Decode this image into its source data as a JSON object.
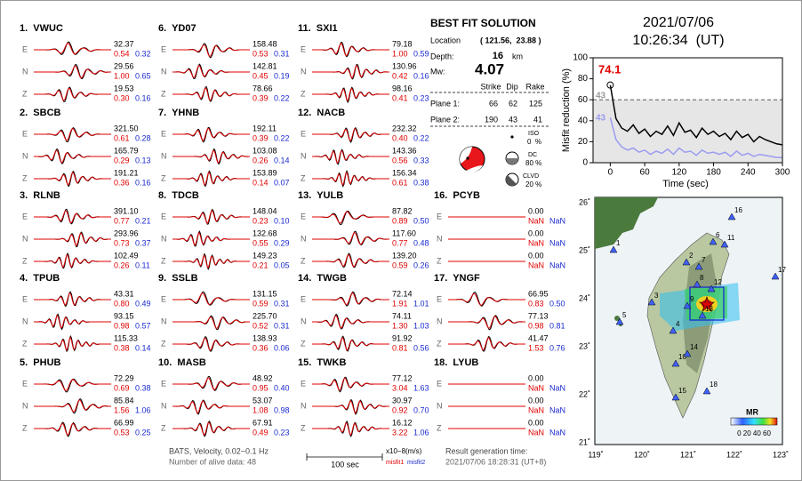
{
  "components": [
    "E",
    "N",
    "Z"
  ],
  "stations": [
    {
      "name": "1.  VWUC",
      "traces": [
        {
          "amplitude": "32.37",
          "misfit1": "0.54",
          "misfit2": "0.32"
        },
        {
          "amplitude": "29.56",
          "misfit1": "1.00",
          "misfit2": "0.65"
        },
        {
          "amplitude": "19.53",
          "misfit1": "0.30",
          "misfit2": "0.16"
        }
      ]
    },
    {
      "name": "2.  SBCB",
      "traces": [
        {
          "amplitude": "321.50",
          "misfit1": "0.61",
          "misfit2": "0.28"
        },
        {
          "amplitude": "165.79",
          "misfit1": "0.29",
          "misfit2": "0.13"
        },
        {
          "amplitude": "191.21",
          "misfit1": "0.36",
          "misfit2": "0.16"
        }
      ]
    },
    {
      "name": "3.  RLNB",
      "traces": [
        {
          "amplitude": "391.10",
          "misfit1": "0.77",
          "misfit2": "0.21"
        },
        {
          "amplitude": "293.96",
          "misfit1": "0.73",
          "misfit2": "0.37"
        },
        {
          "amplitude": "102.49",
          "misfit1": "0.26",
          "misfit2": "0.11"
        }
      ]
    },
    {
      "name": "4.  TPUB",
      "traces": [
        {
          "amplitude": "43.31",
          "misfit1": "0.80",
          "misfit2": "0.49"
        },
        {
          "amplitude": "93.15",
          "misfit1": "0.98",
          "misfit2": "0.57"
        },
        {
          "amplitude": "115.33",
          "misfit1": "0.38",
          "misfit2": "0.14"
        }
      ]
    },
    {
      "name": "5.  PHUB",
      "traces": [
        {
          "amplitude": "72.29",
          "misfit1": "0.69",
          "misfit2": "0.38"
        },
        {
          "amplitude": "85.84",
          "misfit1": "1.56",
          "misfit2": "1.06"
        },
        {
          "amplitude": "66.99",
          "misfit1": "0.53",
          "misfit2": "0.25"
        }
      ]
    },
    {
      "name": "6.  YD07",
      "traces": [
        {
          "amplitude": "158.48",
          "misfit1": "0.53",
          "misfit2": "0.31"
        },
        {
          "amplitude": "142.81",
          "misfit1": "0.45",
          "misfit2": "0.19"
        },
        {
          "amplitude": "78.66",
          "misfit1": "0.39",
          "misfit2": "0.22"
        }
      ]
    },
    {
      "name": "7.  YHNB",
      "traces": [
        {
          "amplitude": "192.11",
          "misfit1": "0.39",
          "misfit2": "0.22"
        },
        {
          "amplitude": "103.08",
          "misfit1": "0.26",
          "misfit2": "0.14"
        },
        {
          "amplitude": "153.89",
          "misfit1": "0.14",
          "misfit2": "0.07"
        }
      ]
    },
    {
      "name": "8.  TDCB",
      "traces": [
        {
          "amplitude": "148.04",
          "misfit1": "0.23",
          "misfit2": "0.10"
        },
        {
          "amplitude": "132.68",
          "misfit1": "0.55",
          "misfit2": "0.29"
        },
        {
          "amplitude": "149.23",
          "misfit1": "0.21",
          "misfit2": "0.05"
        }
      ]
    },
    {
      "name": "9.  SSLB",
      "traces": [
        {
          "amplitude": "131.15",
          "misfit1": "0.59",
          "misfit2": "0.31"
        },
        {
          "amplitude": "225.70",
          "misfit1": "0.52",
          "misfit2": "0.31"
        },
        {
          "amplitude": "138.93",
          "misfit1": "0.36",
          "misfit2": "0.06"
        }
      ]
    },
    {
      "name": "10.  MASB",
      "traces": [
        {
          "amplitude": "48.92",
          "misfit1": "0.95",
          "misfit2": "0.40"
        },
        {
          "amplitude": "53.07",
          "misfit1": "1.08",
          "misfit2": "0.98"
        },
        {
          "amplitude": "67.91",
          "misfit1": "0.49",
          "misfit2": "0.23"
        }
      ]
    },
    {
      "name": "11.  SXI1",
      "traces": [
        {
          "amplitude": "79.18",
          "misfit1": "1.00",
          "misfit2": "0.59"
        },
        {
          "amplitude": "130.96",
          "misfit1": "0.42",
          "misfit2": "0.16"
        },
        {
          "amplitude": "98.16",
          "misfit1": "0.41",
          "misfit2": "0.23"
        }
      ]
    },
    {
      "name": "12.  NACB",
      "traces": [
        {
          "amplitude": "232.32",
          "misfit1": "0.40",
          "misfit2": "0.22"
        },
        {
          "amplitude": "143.36",
          "misfit1": "0.56",
          "misfit2": "0.33"
        },
        {
          "amplitude": "156.34",
          "misfit1": "0.61",
          "misfit2": "0.38"
        }
      ]
    },
    {
      "name": "13.  YULB",
      "traces": [
        {
          "amplitude": "87.82",
          "misfit1": "0.89",
          "misfit2": "0.50"
        },
        {
          "amplitude": "117.60",
          "misfit1": "0.77",
          "misfit2": "0.48"
        },
        {
          "amplitude": "139.20",
          "misfit1": "0.59",
          "misfit2": "0.26"
        }
      ]
    },
    {
      "name": "14.  TWGB",
      "traces": [
        {
          "amplitude": "72.14",
          "misfit1": "1.91",
          "misfit2": "1.01"
        },
        {
          "amplitude": "74.11",
          "misfit1": "1.30",
          "misfit2": "1.03"
        },
        {
          "amplitude": "91.92",
          "misfit1": "0.81",
          "misfit2": "0.56"
        }
      ]
    },
    {
      "name": "15.  TWKB",
      "traces": [
        {
          "amplitude": "77.12",
          "misfit1": "3.04",
          "misfit2": "1.63"
        },
        {
          "amplitude": "30.97",
          "misfit1": "0.92",
          "misfit2": "0.70"
        },
        {
          "amplitude": "16.12",
          "misfit1": "3.22",
          "misfit2": "1.06"
        }
      ]
    },
    {
      "name": "16.  PCYB",
      "traces": [
        {
          "amplitude": "0.00",
          "misfit1": "NaN",
          "misfit2": "NaN"
        },
        {
          "amplitude": "0.00",
          "misfit1": "NaN",
          "misfit2": "NaN"
        },
        {
          "amplitude": "0.00",
          "misfit1": "NaN",
          "misfit2": "NaN"
        }
      ]
    },
    {
      "name": "17.  YNGF",
      "traces": [
        {
          "amplitude": "66.95",
          "misfit1": "0.83",
          "misfit2": "0.50"
        },
        {
          "amplitude": "77.13",
          "misfit1": "0.98",
          "misfit2": "0.81"
        },
        {
          "amplitude": "41.47",
          "misfit1": "1.53",
          "misfit2": "0.76"
        }
      ]
    },
    {
      "name": "18.  LYUB",
      "traces": [
        {
          "amplitude": "0.00",
          "misfit1": "NaN",
          "misfit2": "NaN"
        },
        {
          "amplitude": "0.00",
          "misfit1": "NaN",
          "misfit2": "NaN"
        },
        {
          "amplitude": "0.00",
          "misfit1": "NaN",
          "misfit2": "NaN"
        }
      ]
    }
  ],
  "best_fit": {
    "title": "BEST FIT SOLUTION",
    "location_label": "Location",
    "location": "( 121.56,  23.88 )",
    "depth_label": "Depth:",
    "depth": "16",
    "depth_unit": "km",
    "mw_label": "Mw:",
    "mw": "4.07",
    "columns": [
      "Strike",
      "Dip",
      "Rake"
    ],
    "planes": [
      {
        "label": "Plane 1:",
        "values": [
          "66",
          "62",
          "125"
        ]
      },
      {
        "label": "Plane 2:",
        "values": [
          "190",
          "43",
          "41"
        ]
      }
    ],
    "iso": {
      "label": "ISO",
      "value": "0  %"
    },
    "dc": {
      "label": "DC",
      "value": "80 %"
    },
    "clvd": {
      "label": "CLVD",
      "value": "20 %"
    }
  },
  "event": {
    "date": "2021/07/06",
    "time": "10:26:34  (UT)"
  },
  "footer": {
    "filter": "BATS, Velocity, 0.02~0.1 Hz",
    "alive": "Number of alive data: 48",
    "scale": "100 sec",
    "unit": "x10−8(m/s)",
    "misfit1": "misfit1",
    "misfit2": "misfit2",
    "result_label": "Result generation time:",
    "result_time": "2021/07/06 18:28:31 (UT+8)"
  },
  "map": {
    "lon_labels": [
      "119˚",
      "120˚",
      "121˚",
      "122˚",
      "123˚"
    ],
    "lat_labels": [
      "26˚",
      "25˚",
      "24˚",
      "23˚",
      "22˚",
      "21˚"
    ],
    "stations": [
      "1",
      "2",
      "3",
      "4",
      "5",
      "6",
      "7",
      "8",
      "9",
      "10",
      "11",
      "12",
      "13",
      "14",
      "15",
      "16",
      "17",
      "18"
    ],
    "colorbar_title": "MR",
    "colorbar_labels": "0 20 40 60"
  },
  "chart_data": {
    "type": "line",
    "x_label": "Time (sec)",
    "y_label": "Misfit reduction (%)",
    "x": [
      0,
      10,
      20,
      30,
      40,
      50,
      60,
      70,
      80,
      90,
      100,
      110,
      120,
      130,
      140,
      150,
      160,
      170,
      180,
      190,
      200,
      210,
      220,
      230,
      240,
      250,
      260,
      270,
      280,
      290,
      300
    ],
    "series": [
      {
        "name": "misfit1",
        "color": "#000000",
        "values": [
          74,
          42,
          33,
          30,
          36,
          28,
          32,
          25,
          30,
          27,
          35,
          26,
          38,
          29,
          31,
          24,
          33,
          27,
          30,
          25,
          28,
          22,
          30,
          24,
          27,
          20,
          25,
          22,
          20,
          18,
          17
        ]
      },
      {
        "name": "misfit2",
        "color": "#9a9cf0",
        "values": [
          43,
          22,
          15,
          12,
          14,
          10,
          12,
          8,
          11,
          9,
          13,
          8,
          14,
          10,
          11,
          7,
          12,
          9,
          10,
          8,
          10,
          6,
          11,
          7,
          9,
          6,
          8,
          7,
          6,
          5,
          5
        ]
      }
    ],
    "peak_label": "74.1",
    "threshold_label": "43",
    "start_label": "43",
    "threshold": 60,
    "xlim": [
      -30,
      300
    ],
    "ylim": [
      0,
      100
    ],
    "xticks": [
      0,
      60,
      120,
      180,
      240,
      300
    ],
    "yticks": [
      0,
      20,
      40,
      60,
      80,
      100
    ]
  }
}
